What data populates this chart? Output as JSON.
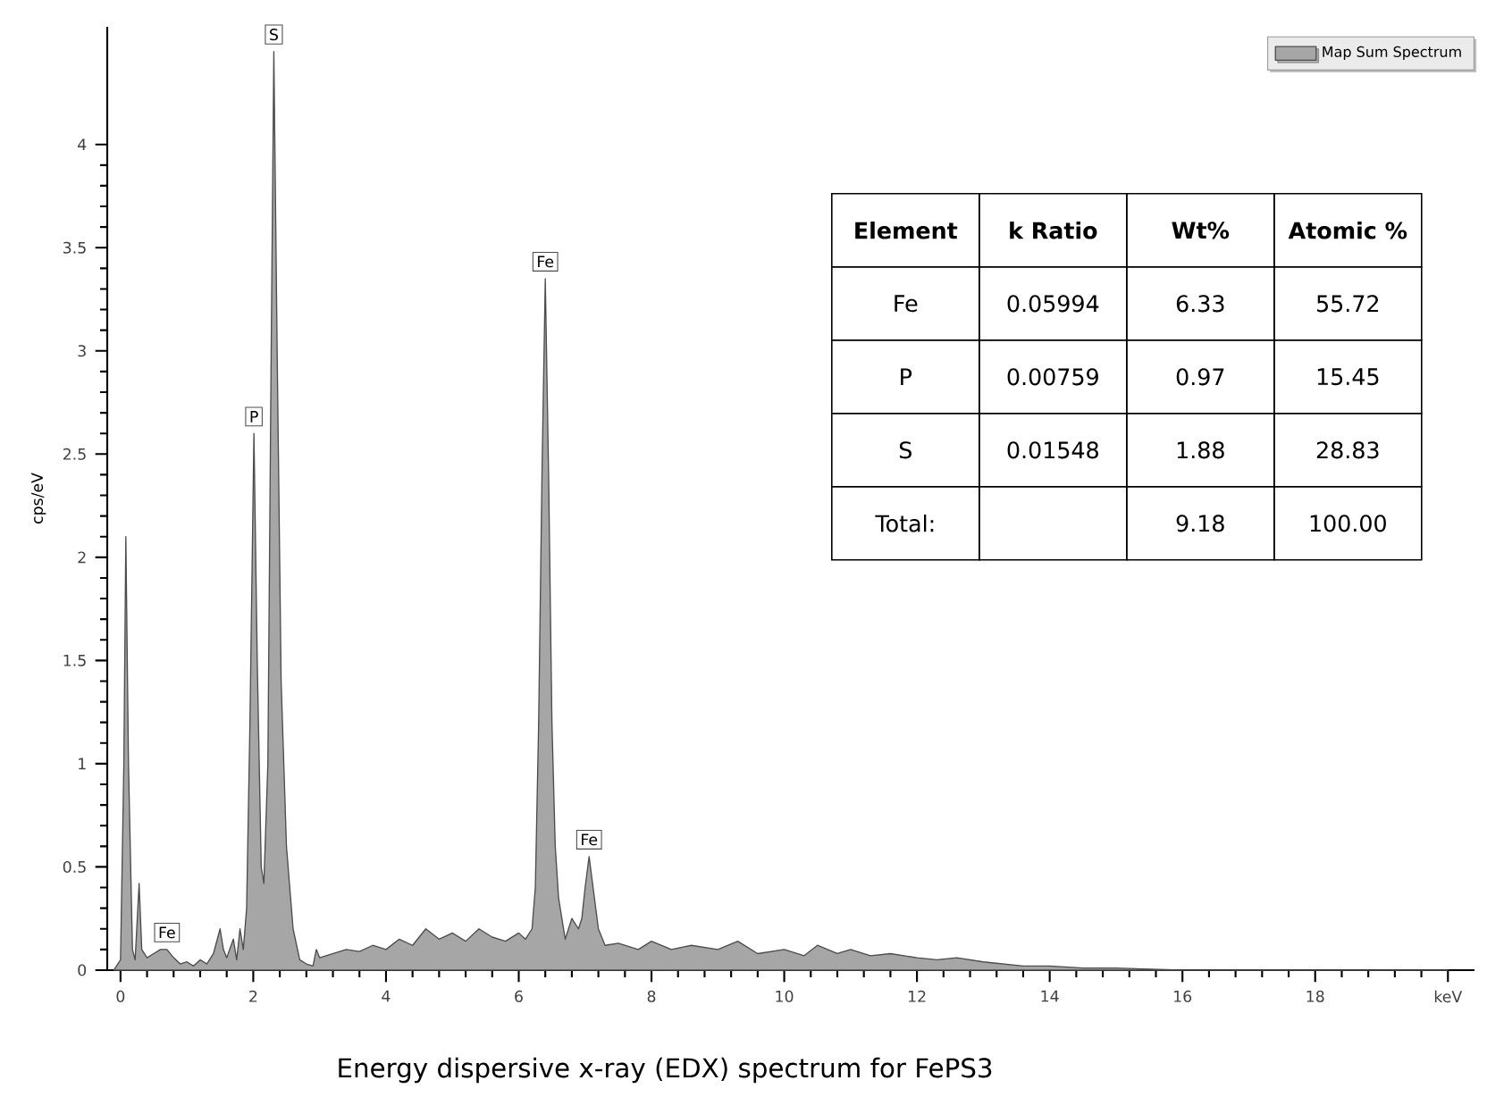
{
  "chart_data": {
    "type": "area",
    "title": "Energy dispersive x-ray (EDX) spectrum for FePS3",
    "ylabel": "cps/eV",
    "xlim": [
      -0.2,
      20.4
    ],
    "ylim": [
      0,
      4.57
    ],
    "xticks": [
      0,
      2,
      4,
      6,
      8,
      10,
      12,
      14,
      16,
      18,
      {
        "value": 20,
        "label": "keV"
      }
    ],
    "yticks": [
      0,
      0.5,
      1,
      1.5,
      2,
      2.5,
      3,
      3.5,
      4
    ],
    "legend": "top right",
    "series": [
      {
        "name": "Map Sum Spectrum",
        "color": "#a6a6a6",
        "x": [
          -0.1,
          0.0,
          0.05,
          0.08,
          0.12,
          0.18,
          0.22,
          0.28,
          0.32,
          0.4,
          0.5,
          0.6,
          0.7,
          0.8,
          0.9,
          1.0,
          1.1,
          1.2,
          1.3,
          1.4,
          1.5,
          1.55,
          1.6,
          1.7,
          1.75,
          1.8,
          1.85,
          1.9,
          1.95,
          2.01,
          2.06,
          2.12,
          2.16,
          2.22,
          2.27,
          2.31,
          2.36,
          2.42,
          2.5,
          2.6,
          2.7,
          2.8,
          2.9,
          2.95,
          3.0,
          3.2,
          3.4,
          3.6,
          3.8,
          4.0,
          4.2,
          4.4,
          4.6,
          4.8,
          5.0,
          5.2,
          5.4,
          5.6,
          5.8,
          6.0,
          6.1,
          6.2,
          6.25,
          6.3,
          6.35,
          6.4,
          6.45,
          6.5,
          6.55,
          6.6,
          6.7,
          6.8,
          6.9,
          6.95,
          7.0,
          7.06,
          7.12,
          7.2,
          7.3,
          7.5,
          7.8,
          8.0,
          8.3,
          8.6,
          9.0,
          9.3,
          9.6,
          10.0,
          10.3,
          10.5,
          10.8,
          11.0,
          11.3,
          11.6,
          12.0,
          12.3,
          12.6,
          13.0,
          13.3,
          13.6,
          14.0,
          14.5,
          15.0,
          16.0,
          18.0,
          20.0
        ],
        "values": [
          0,
          0.05,
          1.0,
          2.1,
          1.0,
          0.1,
          0.05,
          0.42,
          0.1,
          0.06,
          0.08,
          0.1,
          0.1,
          0.06,
          0.03,
          0.04,
          0.02,
          0.05,
          0.03,
          0.08,
          0.2,
          0.1,
          0.06,
          0.15,
          0.05,
          0.2,
          0.1,
          0.3,
          1.2,
          2.6,
          1.5,
          0.5,
          0.42,
          1.0,
          3.0,
          4.45,
          3.0,
          1.4,
          0.6,
          0.2,
          0.05,
          0.03,
          0.02,
          0.1,
          0.06,
          0.08,
          0.1,
          0.09,
          0.12,
          0.1,
          0.15,
          0.12,
          0.2,
          0.15,
          0.18,
          0.14,
          0.2,
          0.16,
          0.14,
          0.18,
          0.15,
          0.2,
          0.4,
          1.2,
          2.4,
          3.35,
          2.4,
          1.2,
          0.6,
          0.35,
          0.15,
          0.25,
          0.2,
          0.25,
          0.4,
          0.55,
          0.4,
          0.2,
          0.12,
          0.13,
          0.1,
          0.14,
          0.1,
          0.12,
          0.1,
          0.14,
          0.08,
          0.1,
          0.07,
          0.12,
          0.08,
          0.1,
          0.07,
          0.08,
          0.06,
          0.05,
          0.06,
          0.04,
          0.03,
          0.02,
          0.02,
          0.01,
          0.01,
          0,
          0,
          0
        ]
      }
    ],
    "annotations": [
      {
        "text": "Fe",
        "x": 0.7,
        "y": 0.1
      },
      {
        "text": "P",
        "x": 2.01,
        "y": 2.6
      },
      {
        "text": "S",
        "x": 2.31,
        "y": 4.45
      },
      {
        "text": "Fe",
        "x": 6.4,
        "y": 3.35
      },
      {
        "text": "Fe",
        "x": 7.06,
        "y": 0.55
      },
      "Element",
      "k Ratio",
      "Wt%",
      "Atomic %",
      "Fe",
      "0.05994",
      "6.33",
      "55.72",
      "P",
      "0.00759",
      "0.97",
      "15.45",
      "S",
      "0.01548",
      "1.88",
      "28.83",
      "Total:",
      null,
      "9.18",
      "100.00"
    ]
  }
}
